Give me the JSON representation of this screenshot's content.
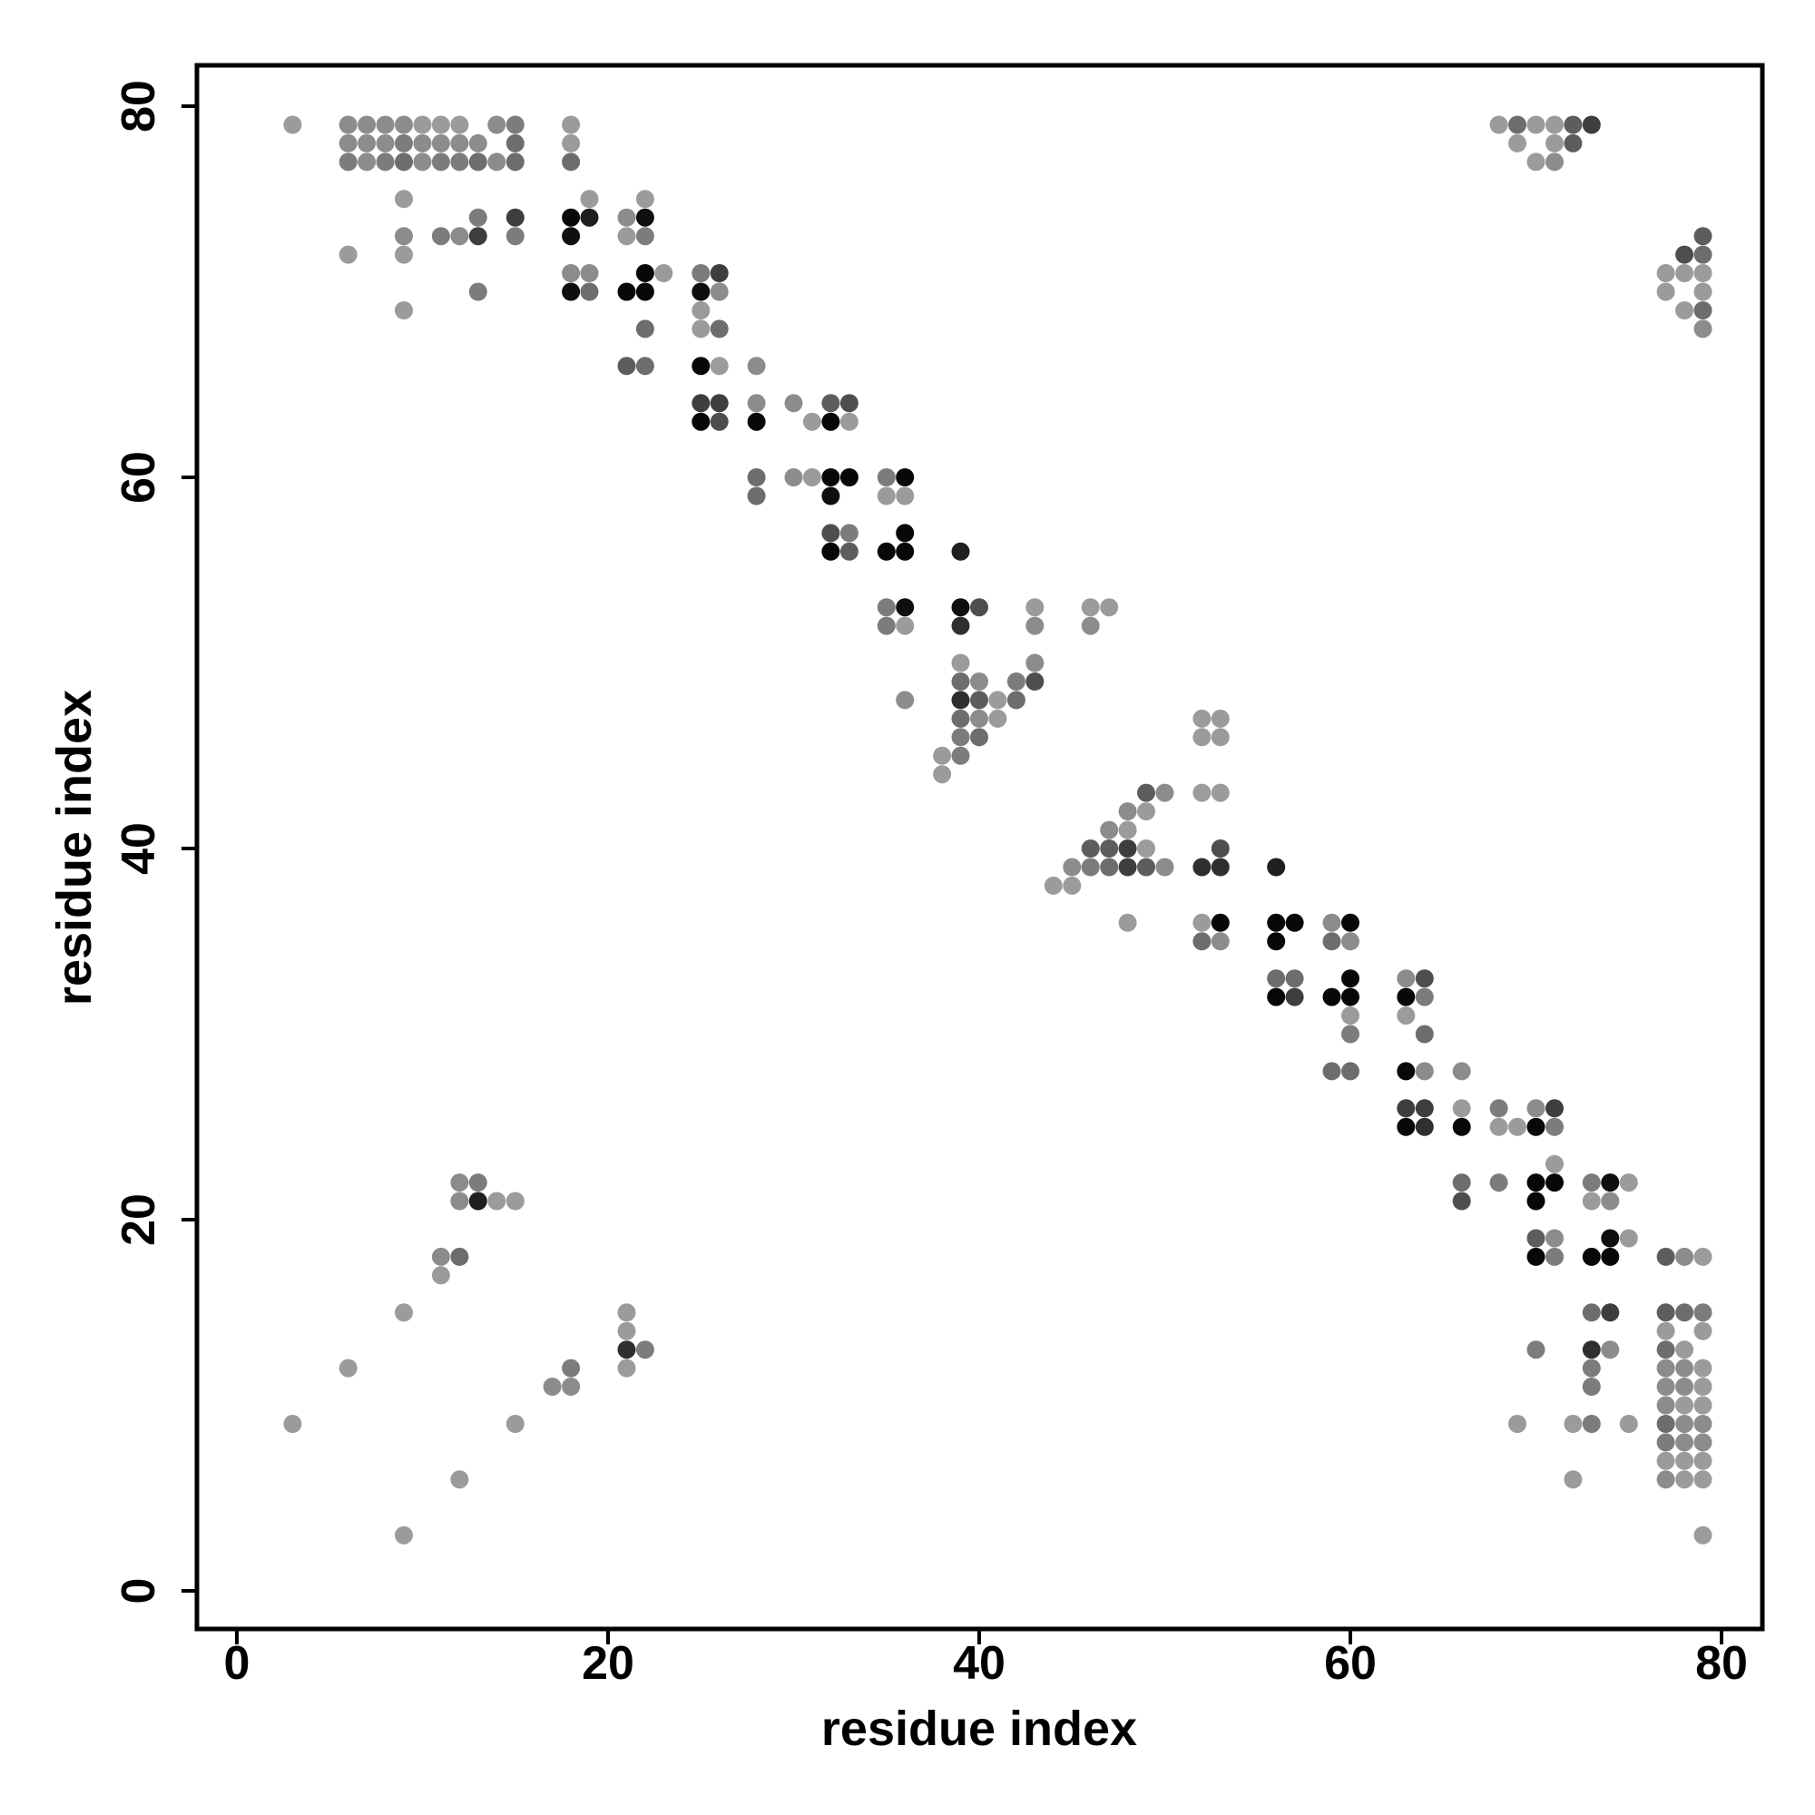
{
  "chart_data": {
    "type": "scatter",
    "title": "",
    "xlabel": "residue index",
    "ylabel": "residue index",
    "xlim": [
      -2,
      82
    ],
    "ylim": [
      -2,
      82
    ],
    "xticks": [
      0,
      20,
      40,
      60,
      80
    ],
    "yticks": [
      0,
      20,
      40,
      60,
      80
    ],
    "grid": false,
    "legend": "none",
    "marker": "filled-circle",
    "color_scale": "grayscale: light gray (#9a9a9a) = low, black (#000000) = high",
    "points": [
      [
        3,
        79,
        0.0
      ],
      [
        6,
        79,
        0.1
      ],
      [
        7,
        79,
        0.1
      ],
      [
        8,
        79,
        0.1
      ],
      [
        9,
        79,
        0.1
      ],
      [
        10,
        79,
        0.0
      ],
      [
        11,
        79,
        0.0
      ],
      [
        12,
        79,
        0.0
      ],
      [
        14,
        79,
        0.1
      ],
      [
        15,
        79,
        0.2
      ],
      [
        18,
        79,
        0.0
      ],
      [
        6,
        78,
        0.1
      ],
      [
        7,
        78,
        0.1
      ],
      [
        8,
        78,
        0.1
      ],
      [
        9,
        78,
        0.2
      ],
      [
        10,
        78,
        0.1
      ],
      [
        11,
        78,
        0.1
      ],
      [
        12,
        78,
        0.1
      ],
      [
        13,
        78,
        0.1
      ],
      [
        15,
        78,
        0.3
      ],
      [
        18,
        78,
        0.0
      ],
      [
        6,
        77,
        0.2
      ],
      [
        7,
        77,
        0.1
      ],
      [
        8,
        77,
        0.2
      ],
      [
        9,
        77,
        0.3
      ],
      [
        10,
        77,
        0.1
      ],
      [
        11,
        77,
        0.2
      ],
      [
        12,
        77,
        0.2
      ],
      [
        13,
        77,
        0.3
      ],
      [
        14,
        77,
        0.1
      ],
      [
        15,
        77,
        0.3
      ],
      [
        18,
        77,
        0.3
      ],
      [
        9,
        75,
        0.0
      ],
      [
        19,
        75,
        0.0
      ],
      [
        22,
        75,
        0.0
      ],
      [
        13,
        74,
        0.2
      ],
      [
        15,
        74,
        0.6
      ],
      [
        18,
        74,
        0.95
      ],
      [
        19,
        74,
        0.8
      ],
      [
        21,
        74,
        0.1
      ],
      [
        22,
        74,
        0.9
      ],
      [
        9,
        73,
        0.1
      ],
      [
        11,
        73,
        0.2
      ],
      [
        12,
        73,
        0.1
      ],
      [
        13,
        73,
        0.6
      ],
      [
        15,
        73,
        0.2
      ],
      [
        18,
        73,
        0.9
      ],
      [
        21,
        73,
        0.0
      ],
      [
        22,
        73,
        0.2
      ],
      [
        6,
        72,
        0.0
      ],
      [
        9,
        72,
        0.0
      ],
      [
        18,
        71,
        0.1
      ],
      [
        19,
        71,
        0.1
      ],
      [
        22,
        71,
        0.95
      ],
      [
        23,
        71,
        0.0
      ],
      [
        25,
        71,
        0.2
      ],
      [
        26,
        71,
        0.6
      ],
      [
        13,
        70,
        0.2
      ],
      [
        18,
        70,
        0.9
      ],
      [
        19,
        70,
        0.3
      ],
      [
        21,
        70,
        0.95
      ],
      [
        22,
        70,
        0.95
      ],
      [
        25,
        70,
        0.9
      ],
      [
        26,
        70,
        0.1
      ],
      [
        9,
        69,
        0.0
      ],
      [
        25,
        69,
        0.0
      ],
      [
        22,
        68,
        0.3
      ],
      [
        25,
        68,
        0.0
      ],
      [
        26,
        68,
        0.3
      ],
      [
        21,
        66,
        0.4
      ],
      [
        22,
        66,
        0.3
      ],
      [
        25,
        66,
        0.95
      ],
      [
        26,
        66,
        0.0
      ],
      [
        28,
        66,
        0.1
      ],
      [
        25,
        64,
        0.6
      ],
      [
        26,
        64,
        0.6
      ],
      [
        28,
        64,
        0.1
      ],
      [
        30,
        64,
        0.1
      ],
      [
        32,
        64,
        0.4
      ],
      [
        33,
        64,
        0.5
      ],
      [
        25,
        63,
        0.95
      ],
      [
        26,
        63,
        0.5
      ],
      [
        28,
        63,
        0.95
      ],
      [
        31,
        63,
        0.0
      ],
      [
        32,
        63,
        0.95
      ],
      [
        33,
        63,
        0.0
      ],
      [
        28,
        60,
        0.3
      ],
      [
        30,
        60,
        0.1
      ],
      [
        31,
        60,
        0.0
      ],
      [
        32,
        60,
        0.95
      ],
      [
        33,
        60,
        0.95
      ],
      [
        35,
        60,
        0.2
      ],
      [
        36,
        60,
        0.95
      ],
      [
        28,
        59,
        0.3
      ],
      [
        32,
        59,
        0.9
      ],
      [
        35,
        59,
        0.0
      ],
      [
        36,
        59,
        0.0
      ],
      [
        32,
        57,
        0.5
      ],
      [
        33,
        57,
        0.2
      ],
      [
        36,
        57,
        0.95
      ],
      [
        32,
        56,
        0.95
      ],
      [
        33,
        56,
        0.4
      ],
      [
        35,
        56,
        0.95
      ],
      [
        36,
        56,
        0.95
      ],
      [
        39,
        56,
        0.8
      ],
      [
        35,
        53,
        0.2
      ],
      [
        36,
        53,
        0.9
      ],
      [
        39,
        53,
        0.9
      ],
      [
        40,
        53,
        0.5
      ],
      [
        43,
        53,
        0.0
      ],
      [
        46,
        53,
        0.0
      ],
      [
        47,
        53,
        0.0
      ],
      [
        35,
        52,
        0.2
      ],
      [
        36,
        52,
        0.0
      ],
      [
        39,
        52,
        0.7
      ],
      [
        43,
        52,
        0.1
      ],
      [
        46,
        52,
        0.1
      ],
      [
        39,
        50,
        0.0
      ],
      [
        43,
        50,
        0.1
      ],
      [
        39,
        49,
        0.3
      ],
      [
        40,
        49,
        0.1
      ],
      [
        42,
        49,
        0.2
      ],
      [
        43,
        49,
        0.5
      ],
      [
        36,
        48,
        0.1
      ],
      [
        39,
        48,
        0.7
      ],
      [
        40,
        48,
        0.4
      ],
      [
        41,
        48,
        0.0
      ],
      [
        42,
        48,
        0.3
      ],
      [
        39,
        47,
        0.3
      ],
      [
        40,
        47,
        0.1
      ],
      [
        41,
        47,
        0.0
      ],
      [
        39,
        46,
        0.2
      ],
      [
        40,
        46,
        0.3
      ],
      [
        38,
        45,
        0.0
      ],
      [
        39,
        45,
        0.2
      ],
      [
        38,
        44,
        0.0
      ],
      [
        52,
        47,
        0.0
      ],
      [
        53,
        47,
        0.0
      ],
      [
        52,
        46,
        0.0
      ],
      [
        53,
        46,
        0.0
      ],
      [
        49,
        43,
        0.4
      ],
      [
        50,
        43,
        0.1
      ],
      [
        52,
        43,
        0.0
      ],
      [
        53,
        43,
        0.0
      ],
      [
        48,
        42,
        0.1
      ],
      [
        49,
        42,
        0.0
      ],
      [
        47,
        41,
        0.1
      ],
      [
        48,
        41,
        0.0
      ],
      [
        46,
        40,
        0.4
      ],
      [
        47,
        40,
        0.4
      ],
      [
        48,
        40,
        0.6
      ],
      [
        49,
        40,
        0.0
      ],
      [
        53,
        40,
        0.5
      ],
      [
        45,
        39,
        0.1
      ],
      [
        46,
        39,
        0.2
      ],
      [
        47,
        39,
        0.3
      ],
      [
        48,
        39,
        0.6
      ],
      [
        49,
        39,
        0.4
      ],
      [
        50,
        39,
        0.1
      ],
      [
        52,
        39,
        0.7
      ],
      [
        53,
        39,
        0.7
      ],
      [
        56,
        39,
        0.8
      ],
      [
        44,
        38,
        0.0
      ],
      [
        45,
        38,
        0.0
      ],
      [
        48,
        36,
        0.0
      ],
      [
        52,
        36,
        0.0
      ],
      [
        53,
        36,
        0.95
      ],
      [
        56,
        36,
        0.95
      ],
      [
        57,
        36,
        0.95
      ],
      [
        59,
        36,
        0.1
      ],
      [
        60,
        36,
        0.95
      ],
      [
        52,
        35,
        0.3
      ],
      [
        53,
        35,
        0.1
      ],
      [
        56,
        35,
        0.95
      ],
      [
        59,
        35,
        0.3
      ],
      [
        60,
        35,
        0.1
      ],
      [
        56,
        33,
        0.3
      ],
      [
        57,
        33,
        0.3
      ],
      [
        60,
        33,
        0.95
      ],
      [
        63,
        33,
        0.1
      ],
      [
        64,
        33,
        0.5
      ],
      [
        56,
        32,
        0.95
      ],
      [
        57,
        32,
        0.6
      ],
      [
        59,
        32,
        0.95
      ],
      [
        60,
        32,
        0.95
      ],
      [
        63,
        32,
        0.95
      ],
      [
        64,
        32,
        0.2
      ],
      [
        60,
        31,
        0.0
      ],
      [
        63,
        31,
        0.0
      ],
      [
        60,
        30,
        0.2
      ],
      [
        64,
        30,
        0.3
      ],
      [
        59,
        28,
        0.3
      ],
      [
        60,
        28,
        0.3
      ],
      [
        63,
        28,
        0.95
      ],
      [
        64,
        28,
        0.1
      ],
      [
        66,
        28,
        0.1
      ],
      [
        63,
        26,
        0.6
      ],
      [
        64,
        26,
        0.6
      ],
      [
        66,
        26,
        0.0
      ],
      [
        68,
        26,
        0.2
      ],
      [
        70,
        26,
        0.1
      ],
      [
        71,
        26,
        0.6
      ],
      [
        63,
        25,
        0.95
      ],
      [
        64,
        25,
        0.7
      ],
      [
        66,
        25,
        0.95
      ],
      [
        68,
        25,
        0.0
      ],
      [
        69,
        25,
        0.0
      ],
      [
        70,
        25,
        0.95
      ],
      [
        71,
        25,
        0.2
      ],
      [
        71,
        23,
        0.0
      ],
      [
        66,
        22,
        0.3
      ],
      [
        68,
        22,
        0.2
      ],
      [
        70,
        22,
        0.95
      ],
      [
        71,
        22,
        0.95
      ],
      [
        73,
        22,
        0.2
      ],
      [
        74,
        22,
        0.9
      ],
      [
        75,
        22,
        0.0
      ],
      [
        66,
        21,
        0.5
      ],
      [
        70,
        21,
        0.95
      ],
      [
        73,
        21,
        0.0
      ],
      [
        74,
        21,
        0.1
      ],
      [
        70,
        19,
        0.4
      ],
      [
        71,
        19,
        0.1
      ],
      [
        74,
        19,
        0.9
      ],
      [
        75,
        19,
        0.0
      ],
      [
        70,
        18,
        0.95
      ],
      [
        71,
        18,
        0.2
      ],
      [
        73,
        18,
        0.95
      ],
      [
        74,
        18,
        0.95
      ],
      [
        77,
        18,
        0.4
      ],
      [
        78,
        18,
        0.1
      ],
      [
        79,
        18,
        0.0
      ],
      [
        73,
        15,
        0.3
      ],
      [
        74,
        15,
        0.6
      ],
      [
        77,
        15,
        0.4
      ],
      [
        78,
        15,
        0.3
      ],
      [
        79,
        15,
        0.2
      ],
      [
        77,
        14,
        0.0
      ],
      [
        79,
        14,
        0.0
      ],
      [
        70,
        13,
        0.2
      ],
      [
        73,
        13,
        0.7
      ],
      [
        74,
        13,
        0.1
      ],
      [
        77,
        13,
        0.3
      ],
      [
        78,
        13,
        0.0
      ],
      [
        73,
        12,
        0.2
      ],
      [
        77,
        12,
        0.1
      ],
      [
        78,
        12,
        0.1
      ],
      [
        79,
        12,
        0.0
      ],
      [
        73,
        11,
        0.2
      ],
      [
        77,
        11,
        0.1
      ],
      [
        78,
        11,
        0.1
      ],
      [
        79,
        11,
        0.0
      ],
      [
        77,
        10,
        0.1
      ],
      [
        78,
        10,
        0.0
      ],
      [
        79,
        10,
        0.0
      ],
      [
        69,
        9,
        0.0
      ],
      [
        72,
        9,
        0.0
      ],
      [
        73,
        9,
        0.2
      ],
      [
        75,
        9,
        0.0
      ],
      [
        77,
        9,
        0.3
      ],
      [
        78,
        9,
        0.1
      ],
      [
        79,
        9,
        0.1
      ],
      [
        77,
        8,
        0.2
      ],
      [
        78,
        8,
        0.1
      ],
      [
        79,
        8,
        0.1
      ],
      [
        77,
        7,
        0.0
      ],
      [
        78,
        7,
        0.0
      ],
      [
        79,
        7,
        0.0
      ],
      [
        72,
        6,
        0.0
      ],
      [
        77,
        6,
        0.1
      ],
      [
        78,
        6,
        0.0
      ],
      [
        79,
        6,
        0.0
      ],
      [
        79,
        3,
        0.0
      ],
      [
        68,
        79,
        0.0
      ],
      [
        69,
        79,
        0.3
      ],
      [
        70,
        79,
        0.0
      ],
      [
        71,
        79,
        0.0
      ],
      [
        72,
        79,
        0.4
      ],
      [
        73,
        79,
        0.6
      ],
      [
        69,
        78,
        0.0
      ],
      [
        71,
        78,
        0.0
      ],
      [
        72,
        78,
        0.4
      ],
      [
        70,
        77,
        0.0
      ],
      [
        71,
        77,
        0.1
      ],
      [
        79,
        73,
        0.4
      ],
      [
        78,
        72,
        0.5
      ],
      [
        79,
        72,
        0.3
      ],
      [
        77,
        71,
        0.0
      ],
      [
        78,
        71,
        0.0
      ],
      [
        79,
        71,
        0.0
      ],
      [
        77,
        70,
        0.0
      ],
      [
        79,
        70,
        0.0
      ],
      [
        78,
        69,
        0.0
      ],
      [
        79,
        69,
        0.3
      ],
      [
        79,
        68,
        0.1
      ],
      [
        12,
        22,
        0.1
      ],
      [
        13,
        22,
        0.2
      ],
      [
        12,
        21,
        0.1
      ],
      [
        13,
        21,
        0.8
      ],
      [
        14,
        21,
        0.0
      ],
      [
        15,
        21,
        0.0
      ],
      [
        11,
        18,
        0.1
      ],
      [
        12,
        18,
        0.3
      ],
      [
        11,
        17,
        0.0
      ],
      [
        9,
        15,
        0.0
      ],
      [
        21,
        15,
        0.0
      ],
      [
        21,
        14,
        0.0
      ],
      [
        21,
        13,
        0.7
      ],
      [
        22,
        13,
        0.2
      ],
      [
        6,
        12,
        0.0
      ],
      [
        18,
        12,
        0.2
      ],
      [
        21,
        12,
        0.0
      ],
      [
        17,
        11,
        0.1
      ],
      [
        18,
        11,
        0.1
      ],
      [
        3,
        9,
        0.0
      ],
      [
        15,
        9,
        0.0
      ],
      [
        12,
        6,
        0.0
      ],
      [
        9,
        3,
        0.0
      ]
    ]
  }
}
